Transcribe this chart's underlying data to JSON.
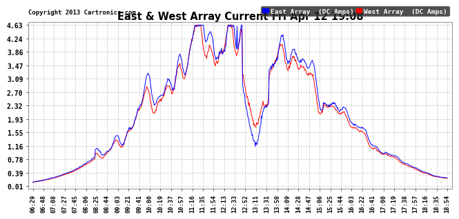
{
  "title": "East & West Array Current Fri Apr 12 19:08",
  "copyright": "Copyright 2013 Cartronics.com",
  "legend_east": "East Array  (DC Amps)",
  "legend_west": "West Array  (DC Amps)",
  "east_color": "#0000ff",
  "west_color": "#ff0000",
  "background_color": "#ffffff",
  "plot_bg_color": "#ffffff",
  "grid_color": "#bbbbbb",
  "yticks": [
    0.01,
    0.39,
    0.78,
    1.16,
    1.55,
    1.93,
    2.32,
    2.7,
    3.09,
    3.47,
    3.86,
    4.24,
    4.63
  ],
  "ymin": 0.01,
  "ymax": 4.63,
  "xtick_labels": [
    "06:29",
    "06:48",
    "07:08",
    "07:27",
    "07:45",
    "08:06",
    "08:25",
    "08:44",
    "09:03",
    "09:21",
    "09:41",
    "10:00",
    "10:19",
    "10:37",
    "10:57",
    "11:16",
    "11:35",
    "11:54",
    "12:13",
    "12:33",
    "12:52",
    "13:11",
    "13:31",
    "13:50",
    "14:09",
    "14:28",
    "14:47",
    "15:06",
    "15:25",
    "15:44",
    "16:03",
    "16:22",
    "16:41",
    "17:00",
    "17:19",
    "17:38",
    "17:57",
    "18:16",
    "18:35",
    "18:54"
  ],
  "line_width": 0.7,
  "n_points": 750
}
